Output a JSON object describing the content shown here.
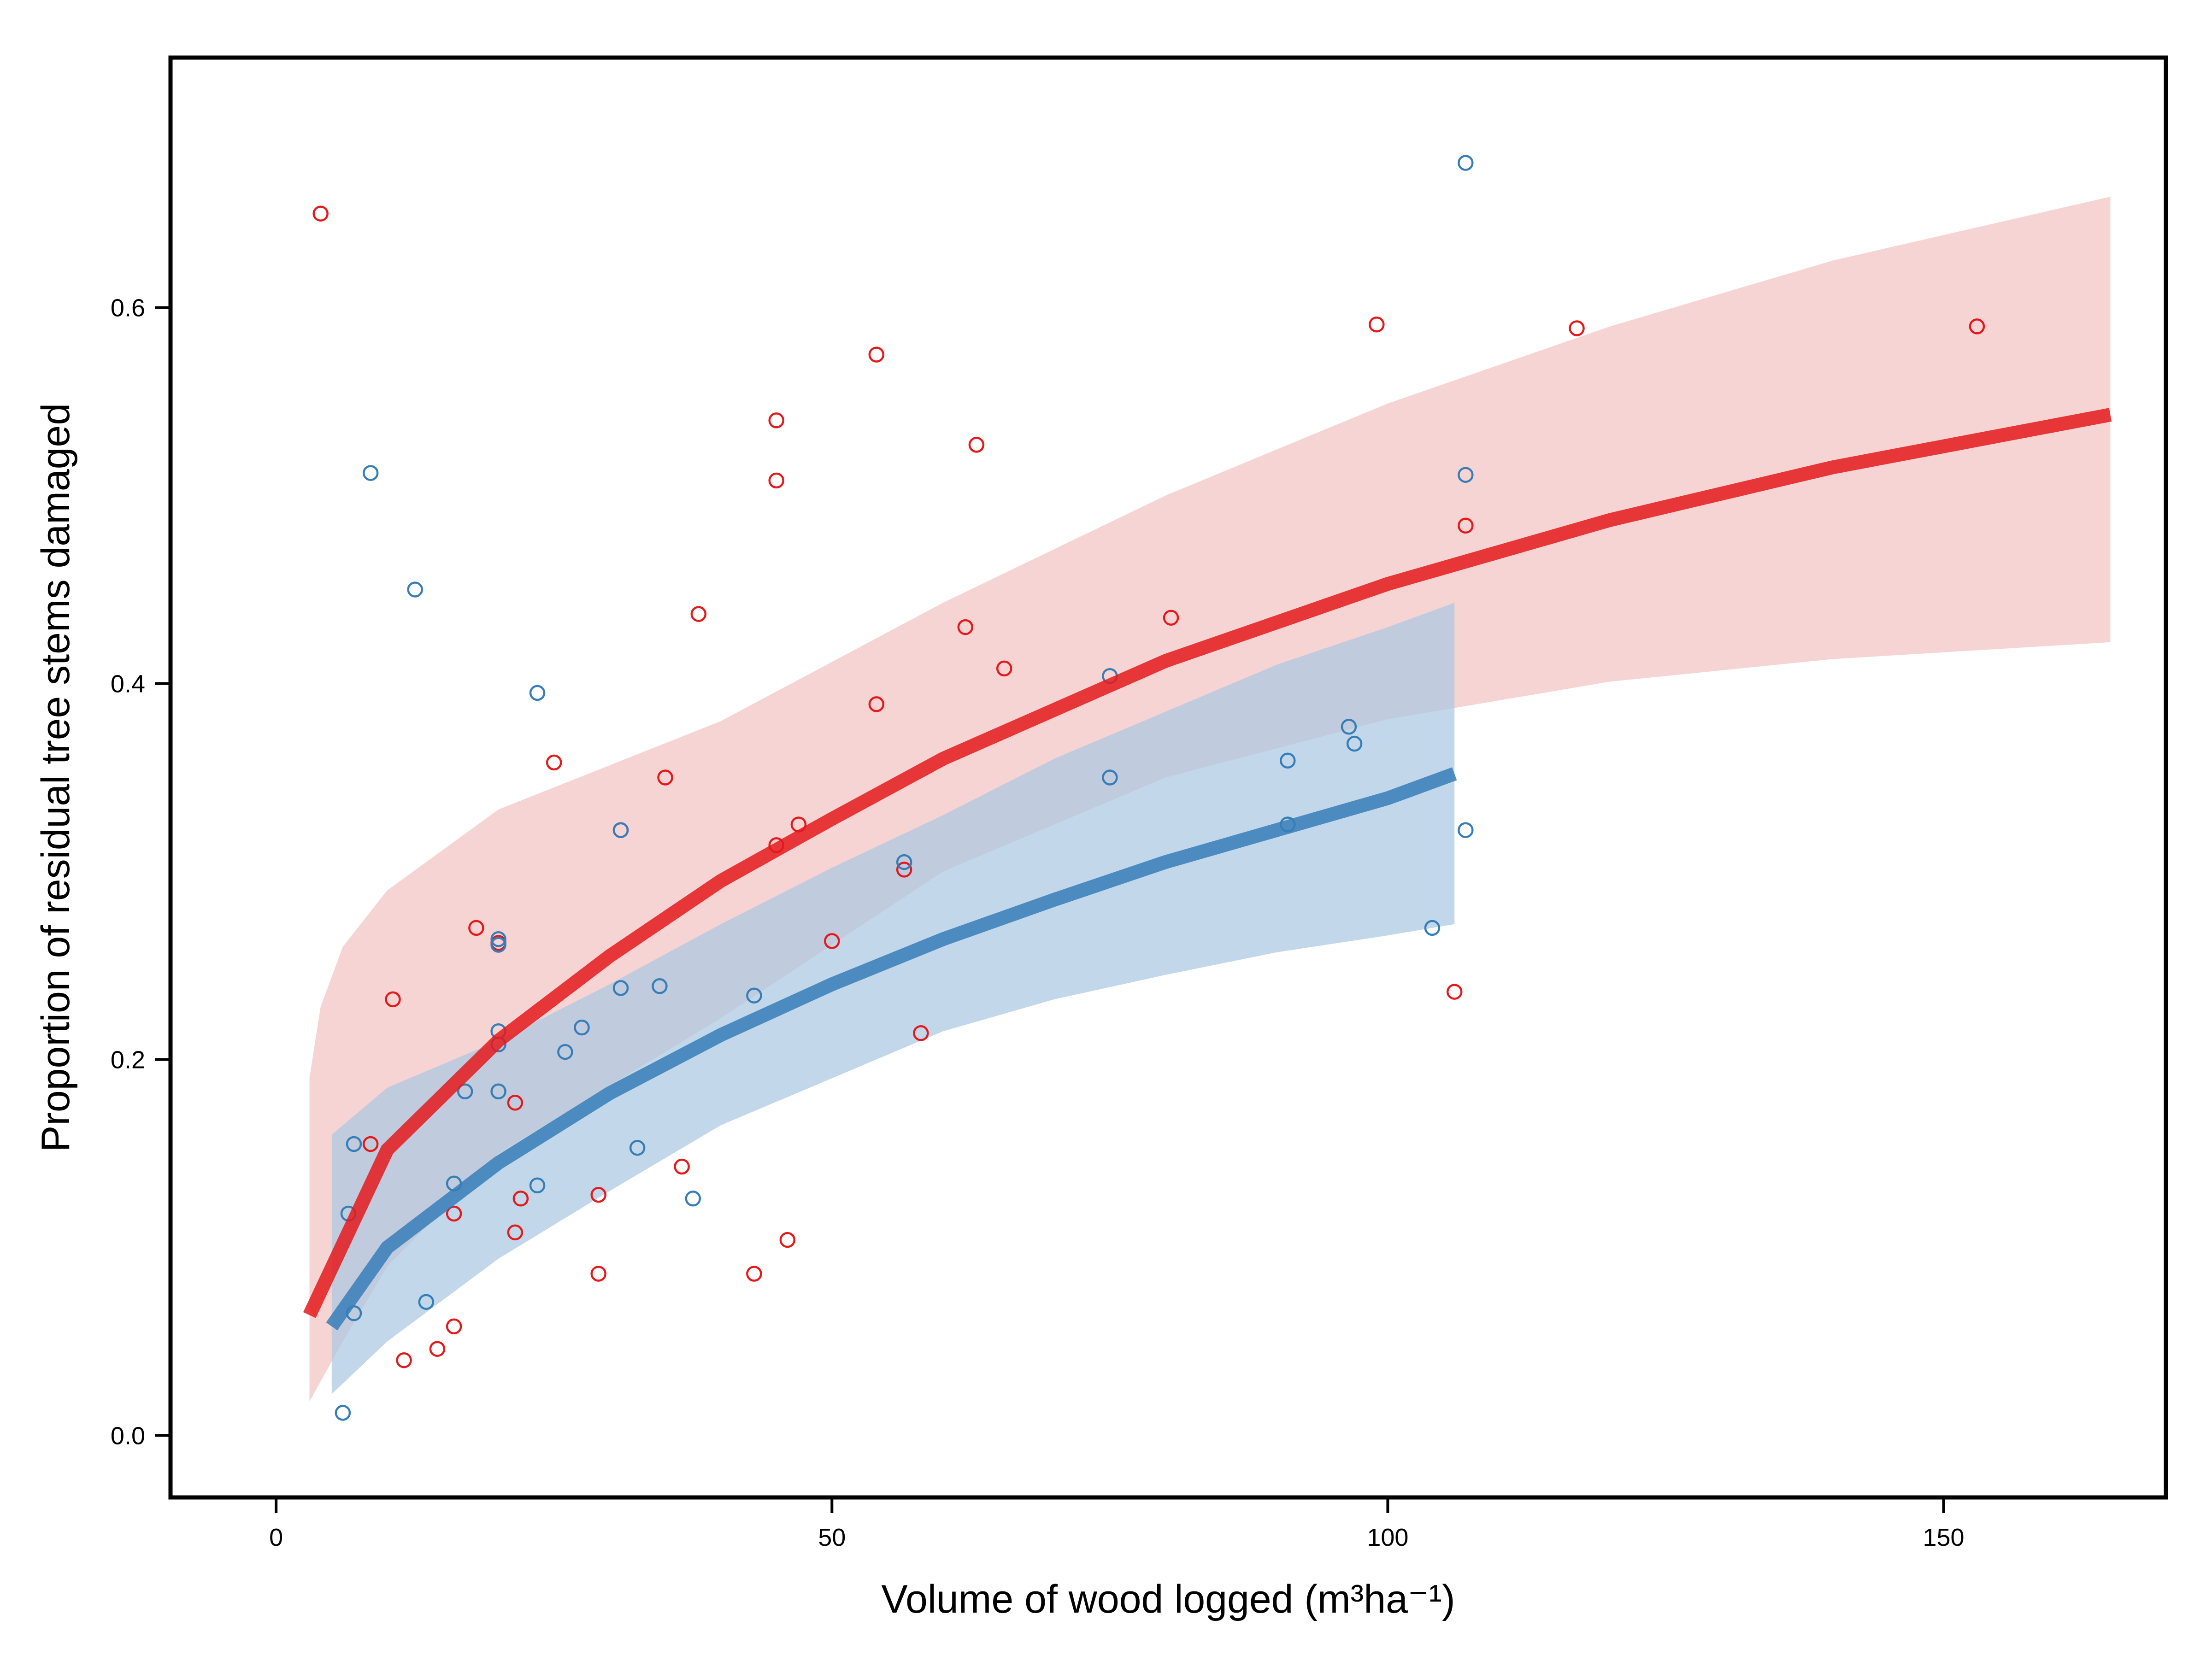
{
  "chart_data": {
    "type": "scatter",
    "title": "",
    "xlabel": "Volume of wood logged (m³ha⁻¹)",
    "ylabel": "Proportion of residual tree stems damaged",
    "xlim": [
      -9.5,
      170
    ],
    "ylim": [
      -0.033,
      0.733
    ],
    "xticks": [
      "0",
      "50",
      "100",
      "150"
    ],
    "yticks": [
      "0.0",
      "0.2",
      "0.4",
      "0.6"
    ],
    "grid": false,
    "legend": "none",
    "series": [
      {
        "color": "#e41a1c",
        "marker": "open-circle",
        "points": [
          [
            4,
            0.65
          ],
          [
            8.5,
            0.155
          ],
          [
            10.5,
            0.232
          ],
          [
            11.5,
            0.04
          ],
          [
            14.5,
            0.046
          ],
          [
            16,
            0.058
          ],
          [
            16,
            0.118
          ],
          [
            18,
            0.27
          ],
          [
            20,
            0.262
          ],
          [
            21.5,
            0.108
          ],
          [
            21.5,
            0.177
          ],
          [
            22,
            0.126
          ],
          [
            25,
            0.358
          ],
          [
            29,
            0.086
          ],
          [
            29,
            0.128
          ],
          [
            31,
            0.322
          ],
          [
            35,
            0.35
          ],
          [
            36.5,
            0.143
          ],
          [
            38,
            0.437
          ],
          [
            43,
            0.086
          ],
          [
            45,
            0.508
          ],
          [
            45,
            0.54
          ],
          [
            45,
            0.314
          ],
          [
            46,
            0.104
          ],
          [
            47,
            0.325
          ],
          [
            50,
            0.263
          ],
          [
            54,
            0.575
          ],
          [
            54,
            0.389
          ],
          [
            56.5,
            0.301
          ],
          [
            58,
            0.214
          ],
          [
            62,
            0.43
          ],
          [
            63,
            0.527
          ],
          [
            65.5,
            0.408
          ],
          [
            80.5,
            0.435
          ],
          [
            99,
            0.591
          ],
          [
            106,
            0.236
          ],
          [
            107,
            0.484
          ],
          [
            117,
            0.589
          ],
          [
            153,
            0.59
          ]
        ],
        "fit": {
          "line": [
            [
              3,
              0.064
            ],
            [
              10,
              0.152
            ],
            [
              20,
              0.21
            ],
            [
              30,
              0.255
            ],
            [
              40,
              0.295
            ],
            [
              50,
              0.328
            ],
            [
              60,
              0.36
            ],
            [
              80,
              0.412
            ],
            [
              100,
              0.453
            ],
            [
              120,
              0.487
            ],
            [
              140,
              0.515
            ],
            [
              165,
              0.543
            ]
          ],
          "upper": [
            [
              3,
              0.19
            ],
            [
              4,
              0.228
            ],
            [
              6,
              0.26
            ],
            [
              10,
              0.29
            ],
            [
              20,
              0.333
            ],
            [
              40,
              0.38
            ],
            [
              60,
              0.443
            ],
            [
              80,
              0.5
            ],
            [
              100,
              0.549
            ],
            [
              120,
              0.59
            ],
            [
              140,
              0.625
            ],
            [
              165,
              0.659
            ]
          ],
          "lower": [
            [
              3,
              0.018
            ],
            [
              6,
              0.05
            ],
            [
              10,
              0.09
            ],
            [
              20,
              0.15
            ],
            [
              40,
              0.222
            ],
            [
              60,
              0.3
            ],
            [
              80,
              0.35
            ],
            [
              100,
              0.381
            ],
            [
              120,
              0.401
            ],
            [
              140,
              0.413
            ],
            [
              165,
              0.422
            ]
          ],
          "band_color": "#f4c3c4"
        }
      },
      {
        "color": "#377eb8",
        "marker": "open-circle",
        "points": [
          [
            6,
            0.012
          ],
          [
            6.5,
            0.118
          ],
          [
            7,
            0.155
          ],
          [
            7,
            0.065
          ],
          [
            8.5,
            0.512
          ],
          [
            12.5,
            0.45
          ],
          [
            13.5,
            0.071
          ],
          [
            16,
            0.134
          ],
          [
            17,
            0.183
          ],
          [
            20,
            0.183
          ],
          [
            20,
            0.264
          ],
          [
            20,
            0.261
          ],
          [
            20,
            0.215
          ],
          [
            20,
            0.208
          ],
          [
            23.5,
            0.395
          ],
          [
            23.5,
            0.133
          ],
          [
            26,
            0.204
          ],
          [
            27.5,
            0.217
          ],
          [
            31,
            0.238
          ],
          [
            31,
            0.322
          ],
          [
            32.5,
            0.153
          ],
          [
            34.5,
            0.239
          ],
          [
            37.5,
            0.126
          ],
          [
            43,
            0.234
          ],
          [
            56.5,
            0.305
          ],
          [
            75,
            0.35
          ],
          [
            75,
            0.404
          ],
          [
            91,
            0.359
          ],
          [
            91,
            0.325
          ],
          [
            96.5,
            0.377
          ],
          [
            97,
            0.368
          ],
          [
            104,
            0.27
          ],
          [
            107,
            0.677
          ],
          [
            107,
            0.511
          ],
          [
            107,
            0.322
          ]
        ],
        "fit": {
          "line": [
            [
              5,
              0.058
            ],
            [
              10,
              0.1
            ],
            [
              20,
              0.145
            ],
            [
              30,
              0.182
            ],
            [
              40,
              0.213
            ],
            [
              50,
              0.24
            ],
            [
              60,
              0.264
            ],
            [
              70,
              0.285
            ],
            [
              80,
              0.305
            ],
            [
              90,
              0.322
            ],
            [
              100,
              0.339
            ],
            [
              106,
              0.352
            ]
          ],
          "upper": [
            [
              5,
              0.16
            ],
            [
              10,
              0.185
            ],
            [
              20,
              0.21
            ],
            [
              30,
              0.24
            ],
            [
              40,
              0.272
            ],
            [
              50,
              0.302
            ],
            [
              60,
              0.33
            ],
            [
              70,
              0.36
            ],
            [
              80,
              0.385
            ],
            [
              90,
              0.41
            ],
            [
              100,
              0.43
            ],
            [
              106,
              0.443
            ]
          ],
          "lower": [
            [
              5,
              0.022
            ],
            [
              10,
              0.05
            ],
            [
              20,
              0.094
            ],
            [
              30,
              0.13
            ],
            [
              40,
              0.165
            ],
            [
              50,
              0.19
            ],
            [
              60,
              0.215
            ],
            [
              70,
              0.232
            ],
            [
              80,
              0.245
            ],
            [
              90,
              0.257
            ],
            [
              100,
              0.266
            ],
            [
              106,
              0.272
            ]
          ],
          "band_color": "#abc8e0"
        }
      }
    ]
  }
}
